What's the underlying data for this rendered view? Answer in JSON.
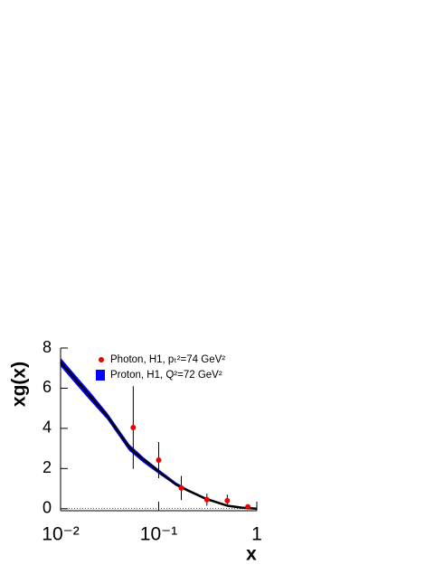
{
  "chart_data": {
    "type": "scatter",
    "xlabel": "x",
    "ylabel": "xg(x)",
    "xscale": "log",
    "xlim": [
      0.01,
      1
    ],
    "xticks": [
      {
        "value": 0.01,
        "label": "10⁻²"
      },
      {
        "value": 0.1,
        "label": "10⁻¹"
      },
      1
    ],
    "ylim": [
      -0.1,
      8
    ],
    "yticks": [
      0,
      2,
      4,
      6,
      8
    ],
    "series": [
      {
        "name": "Photon, H1, pₜ²=74 GeV²",
        "color": "#ee0000",
        "kind": "points",
        "x": [
          0.055,
          0.1,
          0.17,
          0.31,
          0.5,
          0.81
        ],
        "values": [
          4.04,
          2.42,
          1.03,
          0.45,
          0.4,
          0.09
        ],
        "errors": [
          2.06,
          0.9,
          0.6,
          0.3,
          0.3,
          0.1
        ]
      },
      {
        "name": "Proton,  H1, Q²=72 GeV²",
        "color": "#0000ff",
        "kind": "band",
        "x": [
          0.01,
          0.015,
          0.02,
          0.03,
          0.05,
          0.07,
          0.1,
          0.15,
          0.2,
          0.3,
          0.5,
          0.7,
          1
        ],
        "upper": [
          7.5,
          6.5,
          5.8,
          4.75,
          3.2,
          2.55,
          1.95,
          1.3,
          0.95,
          0.55,
          0.18,
          0.06,
          0.01
        ],
        "lower": [
          7.1,
          6.1,
          5.4,
          4.45,
          2.9,
          2.3,
          1.75,
          1.15,
          0.85,
          0.47,
          0.13,
          0.04,
          0
        ]
      },
      {
        "color": "#000000",
        "kind": "line",
        "x": [
          0.01,
          0.015,
          0.02,
          0.03,
          0.05,
          0.07,
          0.1,
          0.15,
          0.2,
          0.3,
          0.5,
          0.7,
          1
        ],
        "values": [
          7.3,
          6.3,
          5.6,
          4.6,
          3.05,
          2.45,
          1.85,
          1.2,
          0.9,
          0.5,
          0.15,
          0.05,
          0
        ]
      }
    ]
  }
}
